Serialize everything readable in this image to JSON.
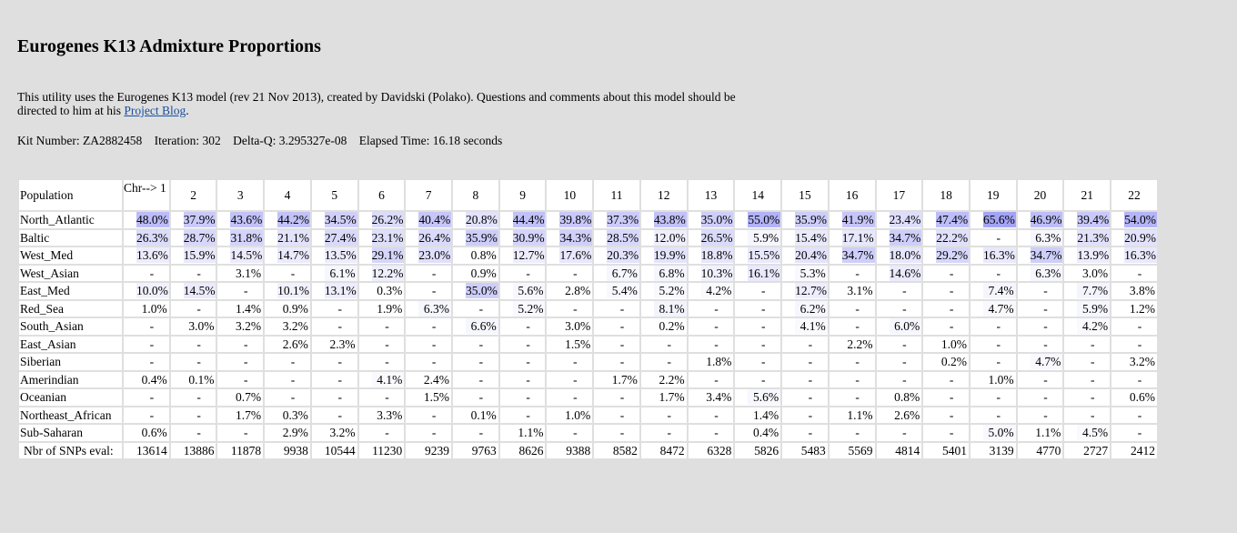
{
  "title": "Eurogenes K13 Admixture Proportions",
  "intro": {
    "text": "This utility uses the Eurogenes K13 model (rev 21 Nov 2013), created by Davidski (Polako). Questions and comments about this model should be directed to him at his ",
    "link": "Project Blog",
    "after": "."
  },
  "kit": {
    "kit_number": "Kit Number: ZA2882458",
    "iteration": "Iteration: 302",
    "delta_q": "Delta-Q: 3.295327e-08",
    "elapsed": "Elapsed Time: 16.18 seconds"
  },
  "shade_color": "#6464f0",
  "table": {
    "population_header": "Population",
    "chr_headers": [
      "Chr--> 1",
      "2",
      "3",
      "4",
      "5",
      "6",
      "7",
      "8",
      "9",
      "10",
      "11",
      "12",
      "13",
      "14",
      "15",
      "16",
      "17",
      "18",
      "19",
      "20",
      "21",
      "22"
    ],
    "rows": [
      {
        "name": "North_Atlantic",
        "values": [
          "48.0%",
          "37.9%",
          "43.6%",
          "44.2%",
          "34.5%",
          "26.2%",
          "40.4%",
          "20.8%",
          "44.4%",
          "39.8%",
          "37.3%",
          "43.8%",
          "35.0%",
          "55.0%",
          "35.9%",
          "41.9%",
          "23.4%",
          "47.4%",
          "65.6%",
          "46.9%",
          "39.4%",
          "54.0%"
        ]
      },
      {
        "name": "Baltic",
        "values": [
          "26.3%",
          "28.7%",
          "31.8%",
          "21.1%",
          "27.4%",
          "23.1%",
          "26.4%",
          "35.9%",
          "30.9%",
          "34.3%",
          "28.5%",
          "12.0%",
          "26.5%",
          "5.9%",
          "15.4%",
          "17.1%",
          "34.7%",
          "22.2%",
          "-",
          "6.3%",
          "21.3%",
          "20.9%"
        ]
      },
      {
        "name": "West_Med",
        "values": [
          "13.6%",
          "15.9%",
          "14.5%",
          "14.7%",
          "13.5%",
          "29.1%",
          "23.0%",
          "0.8%",
          "12.7%",
          "17.6%",
          "20.3%",
          "19.9%",
          "18.8%",
          "15.5%",
          "20.4%",
          "34.7%",
          "18.0%",
          "29.2%",
          "16.3%",
          "34.7%",
          "13.9%",
          "16.3%"
        ]
      },
      {
        "name": "West_Asian",
        "values": [
          "-",
          "-",
          "3.1%",
          "-",
          "6.1%",
          "12.2%",
          "-",
          "0.9%",
          "-",
          "-",
          "6.7%",
          "6.8%",
          "10.3%",
          "16.1%",
          "5.3%",
          "-",
          "14.6%",
          "-",
          "-",
          "6.3%",
          "3.0%",
          "-"
        ]
      },
      {
        "name": "East_Med",
        "values": [
          "10.0%",
          "14.5%",
          "-",
          "10.1%",
          "13.1%",
          "0.3%",
          "-",
          "35.0%",
          "5.6%",
          "2.8%",
          "5.4%",
          "5.2%",
          "4.2%",
          "-",
          "12.7%",
          "3.1%",
          "-",
          "-",
          "7.4%",
          "-",
          "7.7%",
          "3.8%"
        ]
      },
      {
        "name": "Red_Sea",
        "values": [
          "1.0%",
          "-",
          "1.4%",
          "0.9%",
          "-",
          "1.9%",
          "6.3%",
          "-",
          "5.2%",
          "-",
          "-",
          "8.1%",
          "-",
          "-",
          "6.2%",
          "-",
          "-",
          "-",
          "4.7%",
          "-",
          "5.9%",
          "1.2%"
        ]
      },
      {
        "name": "South_Asian",
        "values": [
          "-",
          "3.0%",
          "3.2%",
          "3.2%",
          "-",
          "-",
          "-",
          "6.6%",
          "-",
          "3.0%",
          "-",
          "0.2%",
          "-",
          "-",
          "4.1%",
          "-",
          "6.0%",
          "-",
          "-",
          "-",
          "4.2%",
          "-"
        ]
      },
      {
        "name": "East_Asian",
        "values": [
          "-",
          "-",
          "-",
          "2.6%",
          "2.3%",
          "-",
          "-",
          "-",
          "-",
          "1.5%",
          "-",
          "-",
          "-",
          "-",
          "-",
          "2.2%",
          "-",
          "1.0%",
          "-",
          "-",
          "-",
          "-"
        ]
      },
      {
        "name": "Siberian",
        "values": [
          "-",
          "-",
          "-",
          "-",
          "-",
          "-",
          "-",
          "-",
          "-",
          "-",
          "-",
          "-",
          "1.8%",
          "-",
          "-",
          "-",
          "-",
          "0.2%",
          "-",
          "4.7%",
          "-",
          "3.2%"
        ]
      },
      {
        "name": "Amerindian",
        "values": [
          "0.4%",
          "0.1%",
          "-",
          "-",
          "-",
          "4.1%",
          "2.4%",
          "-",
          "-",
          "-",
          "1.7%",
          "2.2%",
          "-",
          "-",
          "-",
          "-",
          "-",
          "-",
          "1.0%",
          "-",
          "-",
          "-"
        ]
      },
      {
        "name": "Oceanian",
        "values": [
          "-",
          "-",
          "0.7%",
          "-",
          "-",
          "-",
          "1.5%",
          "-",
          "-",
          "-",
          "-",
          "1.7%",
          "3.4%",
          "5.6%",
          "-",
          "-",
          "0.8%",
          "-",
          "-",
          "-",
          "-",
          "0.6%"
        ]
      },
      {
        "name": "Northeast_African",
        "values": [
          "-",
          "-",
          "1.7%",
          "0.3%",
          "-",
          "3.3%",
          "-",
          "0.1%",
          "-",
          "1.0%",
          "-",
          "-",
          "-",
          "1.4%",
          "-",
          "1.1%",
          "2.6%",
          "-",
          "-",
          "-",
          "-",
          "-"
        ]
      },
      {
        "name": "Sub-Saharan",
        "values": [
          "0.6%",
          "-",
          "-",
          "2.9%",
          "3.2%",
          "-",
          "-",
          "-",
          "1.1%",
          "-",
          "-",
          "-",
          "-",
          "0.4%",
          "-",
          "-",
          "-",
          "-",
          "5.0%",
          "1.1%",
          "4.5%",
          "-"
        ]
      }
    ],
    "snp_label": "Nbr of SNPs eval:",
    "snps": [
      "13614",
      "13886",
      "11878",
      "9938",
      "10544",
      "11230",
      "9239",
      "9763",
      "8626",
      "9388",
      "8582",
      "8472",
      "6328",
      "5826",
      "5483",
      "5569",
      "4814",
      "5401",
      "3139",
      "4770",
      "2727",
      "2412"
    ]
  }
}
